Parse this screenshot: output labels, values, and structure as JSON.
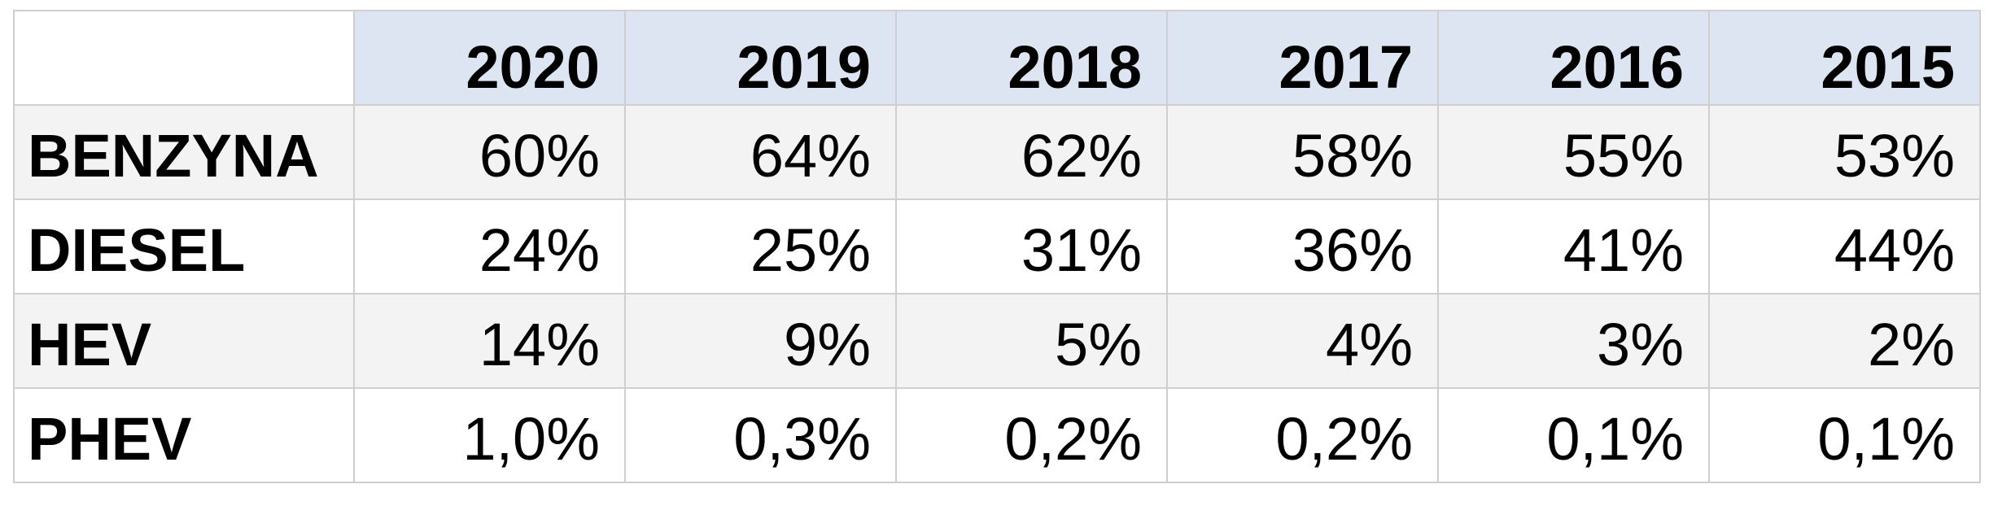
{
  "chart_data": {
    "type": "table",
    "columns": [
      "2020",
      "2019",
      "2018",
      "2017",
      "2016",
      "2015"
    ],
    "rows": [
      {
        "label": "BENZYNA",
        "values": [
          "60%",
          "64%",
          "62%",
          "58%",
          "55%",
          "53%"
        ]
      },
      {
        "label": "DIESEL",
        "values": [
          "24%",
          "25%",
          "31%",
          "36%",
          "41%",
          "44%"
        ]
      },
      {
        "label": "HEV",
        "values": [
          "14%",
          "9%",
          "5%",
          "4%",
          "3%",
          "2%"
        ]
      },
      {
        "label": "PHEV",
        "values": [
          "1,0%",
          "0,3%",
          "0,2%",
          "0,2%",
          "0,1%",
          "0,1%"
        ]
      }
    ]
  },
  "colors": {
    "header_bg": "#dce5f1",
    "band_gray": "#f3f3f3",
    "band_white": "#ffffff",
    "grid_line": "#cfcfcf",
    "text": "#000000"
  }
}
